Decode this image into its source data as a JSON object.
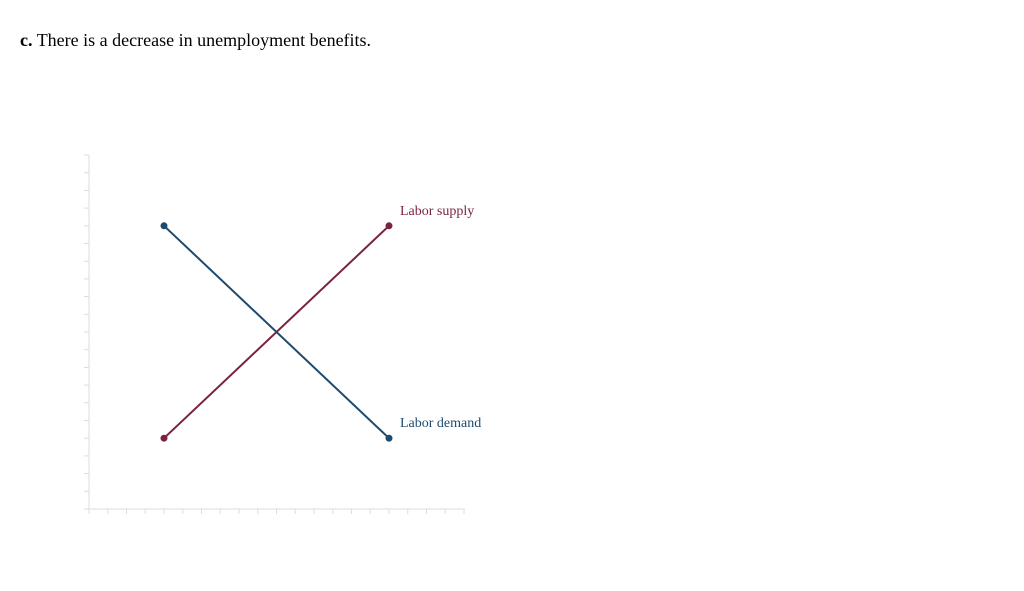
{
  "question": {
    "label": "c.",
    "text": "There is a decrease in unemployment benefits."
  },
  "graph": {
    "axis_color": "#dddddd",
    "x_tick_count": 21,
    "y_tick_count": 21,
    "curves": [
      {
        "id": "labor-supply",
        "label": "Labor supply",
        "color": "#7a2340",
        "start": {
          "x": 4,
          "y": 4
        },
        "end": {
          "x": 16,
          "y": 16
        }
      },
      {
        "id": "labor-demand",
        "label": "Labor demand",
        "color": "#1e4a6e",
        "start": {
          "x": 4,
          "y": 16
        },
        "end": {
          "x": 16,
          "y": 4
        }
      }
    ]
  }
}
